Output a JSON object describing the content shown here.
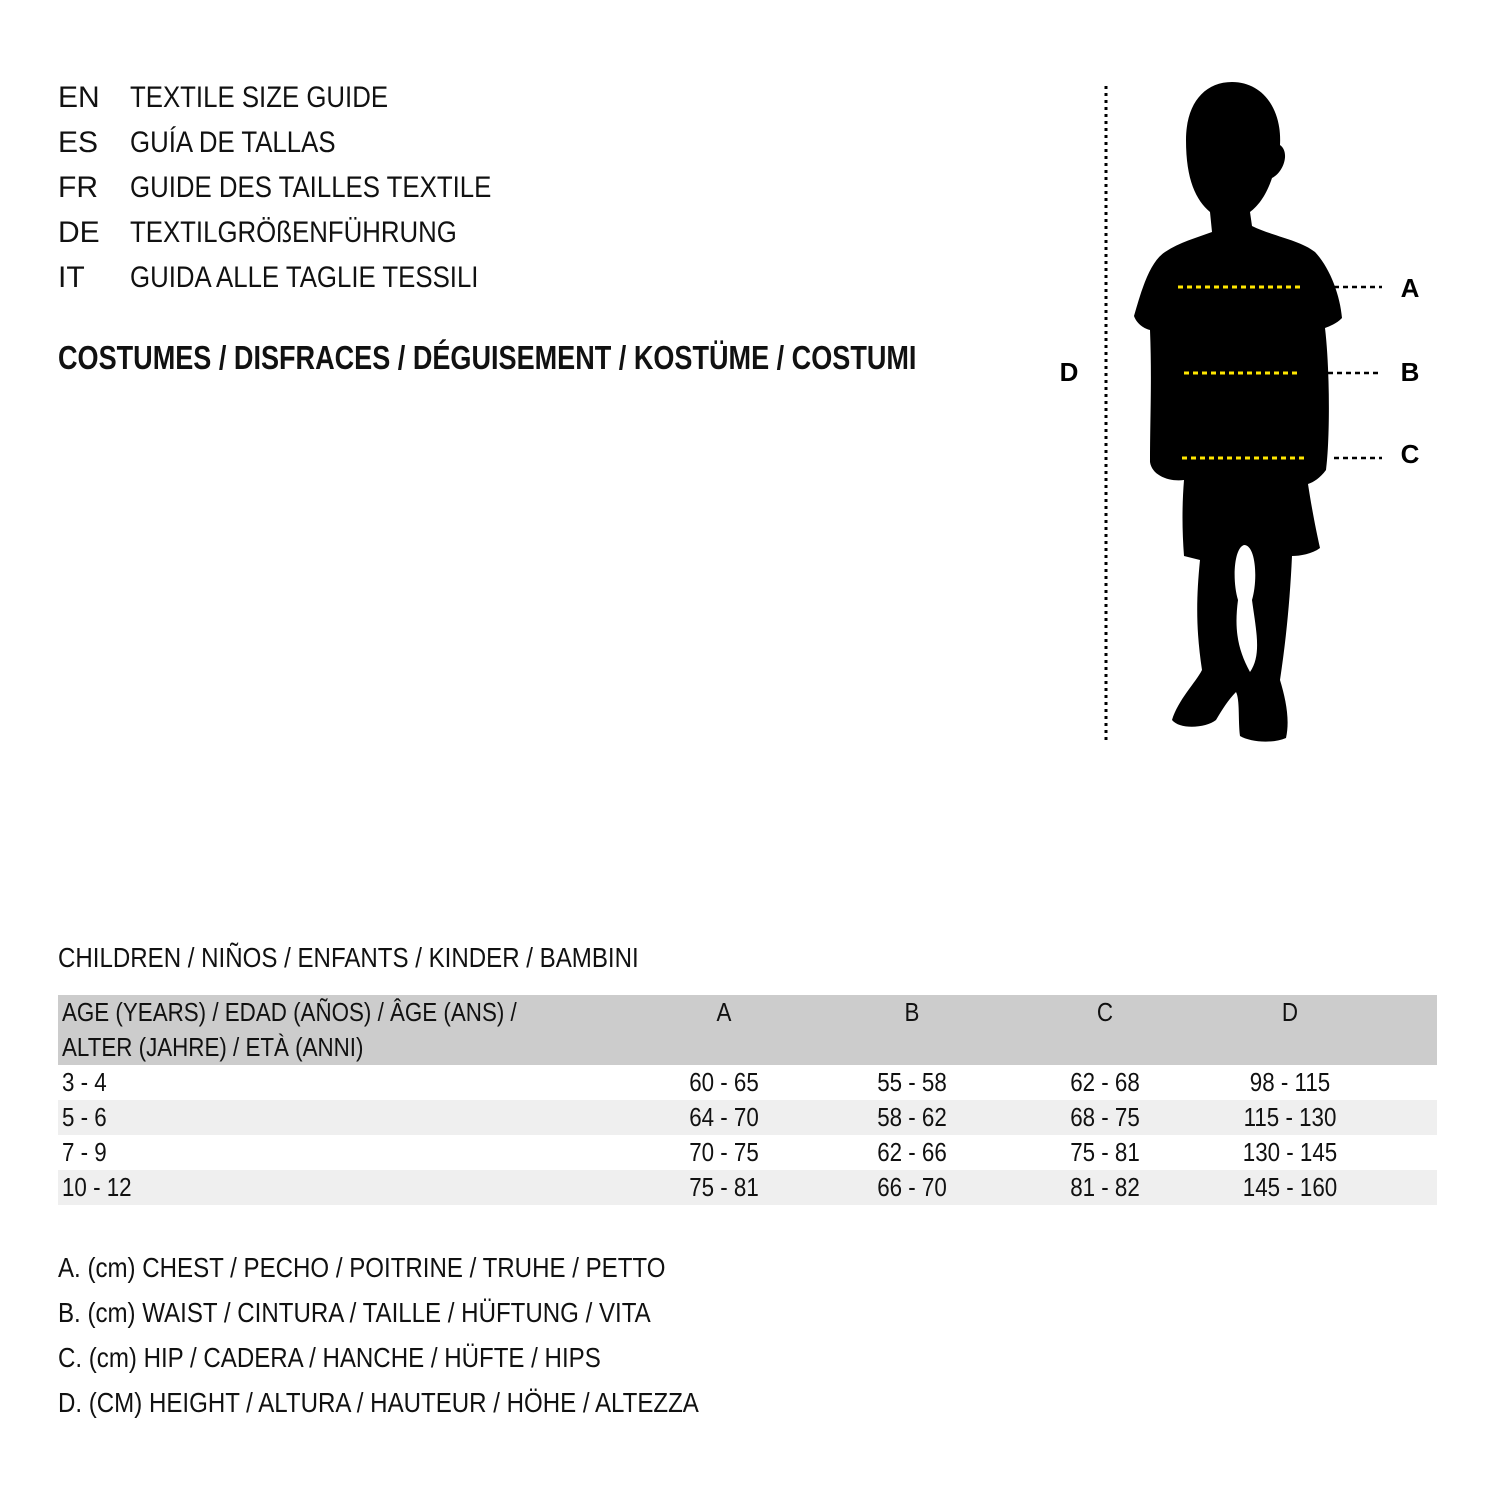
{
  "languages": [
    {
      "code": "EN",
      "title": "TEXTILE SIZE GUIDE"
    },
    {
      "code": "ES",
      "title": "GUÍA DE TALLAS"
    },
    {
      "code": "FR",
      "title": "GUIDE DES TAILLES TEXTILE"
    },
    {
      "code": "DE",
      "title": "TEXTILGRÖßENFÜHRUNG"
    },
    {
      "code": "IT",
      "title": "GUIDA ALLE TAGLIE TESSILI"
    }
  ],
  "category": "COSTUMES / DISFRACES / DÉGUISEMENT / KOSTÜME / COSTUMI",
  "figure": {
    "labels": {
      "a": "A",
      "b": "B",
      "c": "C",
      "d": "D"
    },
    "colors": {
      "silhouette": "#000000",
      "measure_line": "#ffe600"
    }
  },
  "table": {
    "title": "CHILDREN / NIÑOS / ENFANTS / KINDER / BAMBINI",
    "header": {
      "age_line1": "AGE (YEARS) / EDAD (AÑOS) / ÂGE (ANS) /",
      "age_line2": "ALTER (JAHRE) / ETÀ (ANNI)",
      "cols": [
        "A",
        "B",
        "C",
        "D"
      ]
    },
    "rows": [
      {
        "age": "3 - 4",
        "values": [
          "60 - 65",
          "55 - 58",
          "62 - 68",
          "98 - 115"
        ]
      },
      {
        "age": "5 - 6",
        "values": [
          "64 - 70",
          "58 - 62",
          "68 - 75",
          "115 - 130"
        ]
      },
      {
        "age": "7 - 9",
        "values": [
          "70 - 75",
          "62 - 66",
          "75 - 81",
          "130 - 145"
        ]
      },
      {
        "age": "10 - 12",
        "values": [
          "75 - 81",
          "66 - 70",
          "81 - 82",
          "145 - 160"
        ]
      }
    ],
    "colors": {
      "header_bg": "#cccccc",
      "alt_row_bg": "#efefef"
    }
  },
  "legend": [
    "A. (cm) CHEST / PECHO / POITRINE / TRUHE / PETTO",
    "B. (cm) WAIST / CINTURA / TAILLE / HÜFTUNG / VITA",
    "C. (cm) HIP / CADERA / HANCHE / HÜFTE / HIPS",
    "D. (CM) HEIGHT / ALTURA / HAUTEUR / HÖHE / ALTEZZA"
  ]
}
